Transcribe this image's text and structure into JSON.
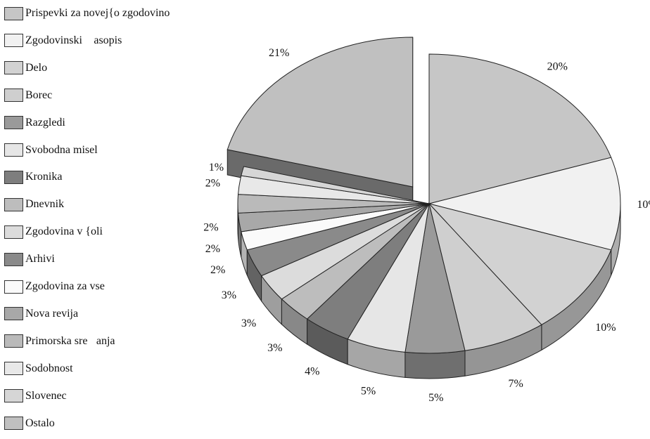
{
  "chart_data": {
    "type": "pie",
    "title": "",
    "series": [
      {
        "values": [
          {
            "label": "Prispevki za novej{o zgodovino",
            "value": 20,
            "display": "20%",
            "color": "#c6c6c6"
          },
          {
            "label": "Zgodovinski \u0000asopis",
            "value": 10,
            "display": "10%",
            "color": "#f1f1f1"
          },
          {
            "label": "Delo",
            "value": 10,
            "display": "10%",
            "color": "#d2d2d2"
          },
          {
            "label": "Borec",
            "value": 7,
            "display": "7%",
            "color": "#cfcfcf"
          },
          {
            "label": "Razgledi",
            "value": 5,
            "display": "5%",
            "color": "#9a9a9a"
          },
          {
            "label": "Svobodna misel",
            "value": 5,
            "display": "5%",
            "color": "#e6e6e6"
          },
          {
            "label": "Kronika",
            "value": 4,
            "display": "4%",
            "color": "#7e7e7e"
          },
          {
            "label": "Dnevnik",
            "value": 3,
            "display": "3%",
            "color": "#bdbdbd"
          },
          {
            "label": "Zgodovina v {oli",
            "value": 3,
            "display": "3%",
            "color": "#dcdcdc"
          },
          {
            "label": "Arhivi",
            "value": 3,
            "display": "3%",
            "color": "#8a8a8a"
          },
          {
            "label": "Zgodovina za vse",
            "value": 2,
            "display": "2%",
            "color": "#fafafa"
          },
          {
            "label": "Nova revija",
            "value": 2,
            "display": "2%",
            "color": "#a8a8a8"
          },
          {
            "label": "Primorska sre\u0000anja",
            "value": 2,
            "display": "2%",
            "color": "#bababa"
          },
          {
            "label": "Sodobnost",
            "value": 2,
            "display": "2%",
            "color": "#e8e8e8"
          },
          {
            "label": "Slovenec",
            "value": 1,
            "display": "1%",
            "color": "#d6d6d6"
          },
          {
            "label": "Ostalo",
            "value": 21,
            "display": "21%",
            "color": "#c0c0c0"
          }
        ]
      }
    ],
    "exploded_slice": "Ostalo",
    "style": "3D pie",
    "legend_position": "left"
  }
}
